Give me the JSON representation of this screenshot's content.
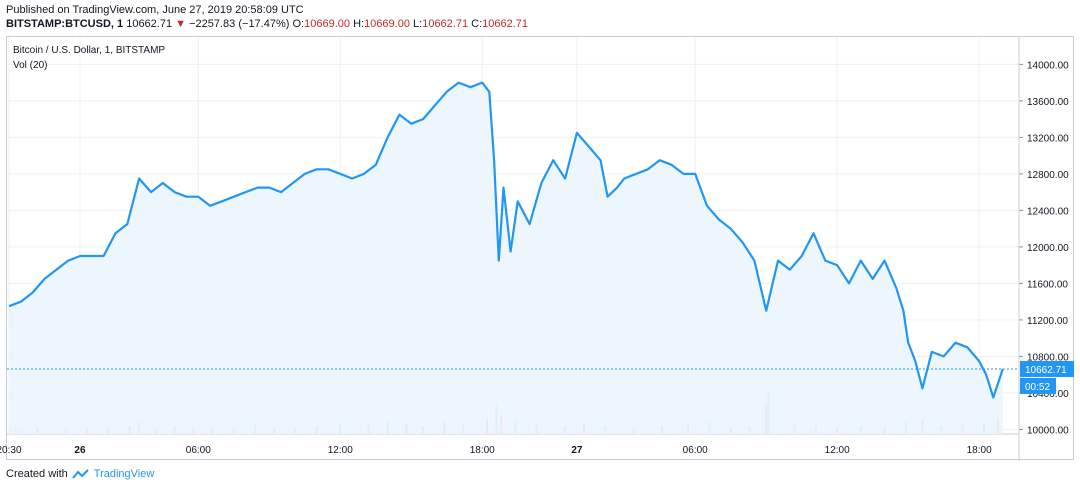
{
  "header": {
    "published": "Published on TradingView.com, June 27, 2019 20:58:09 UTC",
    "symbol": "BITSTAMP:BTCUSD, 1",
    "last": "10662.71",
    "arrow": "▼",
    "change": "−2257.83 (−17.47%)",
    "o_label": "O:",
    "o_value": "10669.00",
    "h_label": "H:",
    "h_value": "10669.00",
    "l_label": "L:",
    "l_value": "10662.71",
    "c_label": "C:",
    "c_value": "10662.71"
  },
  "footer": {
    "created_with": "Created with",
    "brand": "TradingView"
  },
  "colors": {
    "line": "#2196f3",
    "fill": "#eaf4fd",
    "down": "#c62828",
    "vol_up": "#8ed3c9",
    "vol_down": "#f2a6a6"
  },
  "chart_data": {
    "type": "area",
    "title": "Bitcoin / U.S. Dollar, 1, BITSTAMP",
    "indicator": "Vol (20)",
    "ylim": [
      9950,
      14300
    ],
    "y_ticks": [
      "14000.00",
      "13600.00",
      "13200.00",
      "12800.00",
      "12400.00",
      "12000.00",
      "11600.00",
      "11200.00",
      "10800.00",
      "10400.00",
      "10000.00"
    ],
    "x_ticks": [
      "20:30",
      "26",
      "06:00",
      "12:00",
      "18:00",
      "27",
      "06:00",
      "12:00",
      "18:00"
    ],
    "last_price": "10662.71",
    "countdown": "00:52",
    "series": [
      {
        "x": 0,
        "y": 11350
      },
      {
        "x": 0.5,
        "y": 11400
      },
      {
        "x": 1,
        "y": 11500
      },
      {
        "x": 1.5,
        "y": 11650
      },
      {
        "x": 2,
        "y": 11750
      },
      {
        "x": 2.5,
        "y": 11850
      },
      {
        "x": 3,
        "y": 11900
      },
      {
        "x": 3.5,
        "y": 11900
      },
      {
        "x": 4,
        "y": 11900
      },
      {
        "x": 4.5,
        "y": 12150
      },
      {
        "x": 5,
        "y": 12250
      },
      {
        "x": 5.5,
        "y": 12750
      },
      {
        "x": 6,
        "y": 12600
      },
      {
        "x": 6.5,
        "y": 12700
      },
      {
        "x": 7,
        "y": 12600
      },
      {
        "x": 7.5,
        "y": 12550
      },
      {
        "x": 8,
        "y": 12550
      },
      {
        "x": 8.5,
        "y": 12450
      },
      {
        "x": 9,
        "y": 12500
      },
      {
        "x": 9.5,
        "y": 12550
      },
      {
        "x": 10,
        "y": 12600
      },
      {
        "x": 10.5,
        "y": 12650
      },
      {
        "x": 11,
        "y": 12650
      },
      {
        "x": 11.5,
        "y": 12600
      },
      {
        "x": 12,
        "y": 12700
      },
      {
        "x": 12.5,
        "y": 12800
      },
      {
        "x": 13,
        "y": 12850
      },
      {
        "x": 13.5,
        "y": 12850
      },
      {
        "x": 14,
        "y": 12800
      },
      {
        "x": 14.5,
        "y": 12750
      },
      {
        "x": 15,
        "y": 12800
      },
      {
        "x": 15.5,
        "y": 12900
      },
      {
        "x": 16,
        "y": 13200
      },
      {
        "x": 16.5,
        "y": 13450
      },
      {
        "x": 17,
        "y": 13350
      },
      {
        "x": 17.5,
        "y": 13400
      },
      {
        "x": 18,
        "y": 13550
      },
      {
        "x": 18.5,
        "y": 13700
      },
      {
        "x": 19,
        "y": 13800
      },
      {
        "x": 19.5,
        "y": 13750
      },
      {
        "x": 20,
        "y": 13800
      },
      {
        "x": 20.3,
        "y": 13700
      },
      {
        "x": 20.5,
        "y": 12950
      },
      {
        "x": 20.7,
        "y": 11850
      },
      {
        "x": 20.9,
        "y": 12650
      },
      {
        "x": 21.2,
        "y": 11950
      },
      {
        "x": 21.5,
        "y": 12500
      },
      {
        "x": 22,
        "y": 12250
      },
      {
        "x": 22.5,
        "y": 12700
      },
      {
        "x": 23,
        "y": 12950
      },
      {
        "x": 23.5,
        "y": 12750
      },
      {
        "x": 24,
        "y": 13250
      },
      {
        "x": 24.5,
        "y": 13100
      },
      {
        "x": 25,
        "y": 12950
      },
      {
        "x": 25.3,
        "y": 12550
      },
      {
        "x": 25.7,
        "y": 12650
      },
      {
        "x": 26,
        "y": 12750
      },
      {
        "x": 26.5,
        "y": 12800
      },
      {
        "x": 27,
        "y": 12850
      },
      {
        "x": 27.5,
        "y": 12950
      },
      {
        "x": 28,
        "y": 12900
      },
      {
        "x": 28.5,
        "y": 12800
      },
      {
        "x": 29,
        "y": 12800
      },
      {
        "x": 29.5,
        "y": 12450
      },
      {
        "x": 30,
        "y": 12300
      },
      {
        "x": 30.5,
        "y": 12200
      },
      {
        "x": 31,
        "y": 12050
      },
      {
        "x": 31.5,
        "y": 11850
      },
      {
        "x": 32,
        "y": 11300
      },
      {
        "x": 32.5,
        "y": 11850
      },
      {
        "x": 33,
        "y": 11750
      },
      {
        "x": 33.5,
        "y": 11900
      },
      {
        "x": 34,
        "y": 12150
      },
      {
        "x": 34.5,
        "y": 11850
      },
      {
        "x": 35,
        "y": 11800
      },
      {
        "x": 35.5,
        "y": 11600
      },
      {
        "x": 36,
        "y": 11850
      },
      {
        "x": 36.5,
        "y": 11650
      },
      {
        "x": 37,
        "y": 11850
      },
      {
        "x": 37.5,
        "y": 11550
      },
      {
        "x": 37.8,
        "y": 11300
      },
      {
        "x": 38,
        "y": 10950
      },
      {
        "x": 38.3,
        "y": 10750
      },
      {
        "x": 38.6,
        "y": 10450
      },
      {
        "x": 39,
        "y": 10850
      },
      {
        "x": 39.5,
        "y": 10800
      },
      {
        "x": 40,
        "y": 10950
      },
      {
        "x": 40.5,
        "y": 10900
      },
      {
        "x": 41,
        "y": 10750
      },
      {
        "x": 41.3,
        "y": 10600
      },
      {
        "x": 41.6,
        "y": 10350
      },
      {
        "x": 42,
        "y": 10662.71
      }
    ],
    "volume": [
      {
        "x": 0.3,
        "v": 0.02
      },
      {
        "x": 1.2,
        "v": 0.03
      },
      {
        "x": 2.4,
        "v": 0.02
      },
      {
        "x": 3.3,
        "v": 0.03
      },
      {
        "x": 4.2,
        "v": 0.04
      },
      {
        "x": 5.1,
        "v": 0.05
      },
      {
        "x": 5.5,
        "v": 0.08
      },
      {
        "x": 6.2,
        "v": 0.03
      },
      {
        "x": 7.0,
        "v": 0.05
      },
      {
        "x": 7.8,
        "v": 0.03
      },
      {
        "x": 8.6,
        "v": 0.04
      },
      {
        "x": 9.5,
        "v": 0.03
      },
      {
        "x": 10.4,
        "v": 0.06
      },
      {
        "x": 11.2,
        "v": 0.03
      },
      {
        "x": 12.1,
        "v": 0.04
      },
      {
        "x": 13.0,
        "v": 0.05
      },
      {
        "x": 14.0,
        "v": 0.07
      },
      {
        "x": 15.2,
        "v": 0.06
      },
      {
        "x": 16.0,
        "v": 0.09
      },
      {
        "x": 16.8,
        "v": 0.07
      },
      {
        "x": 17.5,
        "v": 0.05
      },
      {
        "x": 18.4,
        "v": 0.09
      },
      {
        "x": 19.2,
        "v": 0.06
      },
      {
        "x": 20.2,
        "v": 0.11
      },
      {
        "x": 20.6,
        "v": 0.22
      },
      {
        "x": 20.8,
        "v": 0.14
      },
      {
        "x": 21.4,
        "v": 0.08
      },
      {
        "x": 22.3,
        "v": 0.06
      },
      {
        "x": 23.5,
        "v": 0.05
      },
      {
        "x": 24.3,
        "v": 0.07
      },
      {
        "x": 25.2,
        "v": 0.05
      },
      {
        "x": 26.4,
        "v": 0.04
      },
      {
        "x": 27.6,
        "v": 0.05
      },
      {
        "x": 28.7,
        "v": 0.06
      },
      {
        "x": 29.6,
        "v": 0.08
      },
      {
        "x": 30.5,
        "v": 0.04
      },
      {
        "x": 31.3,
        "v": 0.05
      },
      {
        "x": 32.0,
        "v": 0.24
      },
      {
        "x": 32.1,
        "v": 0.34
      },
      {
        "x": 33.2,
        "v": 0.06
      },
      {
        "x": 34.1,
        "v": 0.05
      },
      {
        "x": 35.0,
        "v": 0.04
      },
      {
        "x": 36.0,
        "v": 0.05
      },
      {
        "x": 37.0,
        "v": 0.04
      },
      {
        "x": 37.9,
        "v": 0.08
      },
      {
        "x": 38.6,
        "v": 0.11
      },
      {
        "x": 39.4,
        "v": 0.05
      },
      {
        "x": 40.3,
        "v": 0.06
      },
      {
        "x": 41.2,
        "v": 0.08
      },
      {
        "x": 41.8,
        "v": 0.1
      }
    ]
  }
}
